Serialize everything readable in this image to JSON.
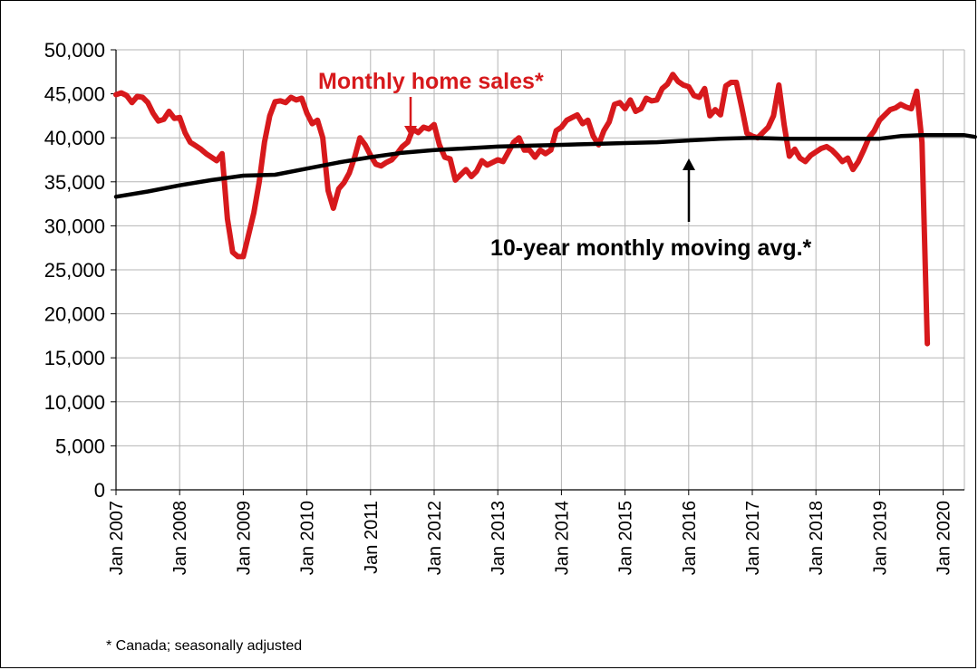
{
  "chart_data": {
    "type": "line",
    "title": "",
    "xlabel": "",
    "ylabel": "",
    "ylim": [
      0,
      50000
    ],
    "y_ticks": [
      "0",
      "5,000",
      "10,000",
      "15,000",
      "20,000",
      "25,000",
      "30,000",
      "35,000",
      "40,000",
      "45,000",
      "50,000"
    ],
    "y_tick_values": [
      0,
      5000,
      10000,
      15000,
      20000,
      25000,
      30000,
      35000,
      40000,
      45000,
      50000
    ],
    "x_ticks": [
      "Jan 2007",
      "Jan 2008",
      "Jan 2009",
      "Jan 2010",
      "Jan 2011",
      "Jan 2012",
      "Jan 2013",
      "Jan 2014",
      "Jan 2015",
      "Jan 2016",
      "Jan 2017",
      "Jan 2018",
      "Jan 2019",
      "Jan 2020"
    ],
    "x_tick_months": [
      0,
      12,
      24,
      36,
      48,
      60,
      72,
      84,
      96,
      108,
      120,
      132,
      144,
      156
    ],
    "x_max_month": 160,
    "grid": true,
    "series": [
      {
        "name": "Monthly home sales*",
        "color": "#d7191c",
        "points": [
          [
            0,
            44900
          ],
          [
            1,
            45100
          ],
          [
            2,
            44800
          ],
          [
            3,
            44000
          ],
          [
            4,
            44700
          ],
          [
            5,
            44600
          ],
          [
            6,
            44000
          ],
          [
            7,
            42800
          ],
          [
            8,
            41900
          ],
          [
            9,
            42100
          ],
          [
            10,
            43000
          ],
          [
            11,
            42200
          ],
          [
            12,
            42300
          ],
          [
            13,
            40600
          ],
          [
            14,
            39500
          ],
          [
            15,
            39100
          ],
          [
            16,
            38700
          ],
          [
            17,
            38200
          ],
          [
            18,
            37800
          ],
          [
            19,
            37400
          ],
          [
            20,
            38200
          ],
          [
            21,
            30800
          ],
          [
            22,
            27000
          ],
          [
            23,
            26500
          ],
          [
            24,
            26500
          ],
          [
            25,
            29000
          ],
          [
            26,
            31500
          ],
          [
            27,
            35000
          ],
          [
            28,
            39500
          ],
          [
            29,
            42500
          ],
          [
            30,
            44100
          ],
          [
            31,
            44200
          ],
          [
            32,
            44000
          ],
          [
            33,
            44600
          ],
          [
            34,
            44300
          ],
          [
            35,
            44500
          ],
          [
            36,
            42800
          ],
          [
            37,
            41600
          ],
          [
            38,
            42000
          ],
          [
            39,
            40000
          ],
          [
            40,
            34000
          ],
          [
            41,
            32000
          ],
          [
            42,
            34200
          ],
          [
            43,
            34900
          ],
          [
            44,
            36000
          ],
          [
            45,
            37800
          ],
          [
            46,
            40000
          ],
          [
            47,
            39200
          ],
          [
            48,
            38000
          ],
          [
            49,
            37000
          ],
          [
            50,
            36800
          ],
          [
            51,
            37200
          ],
          [
            52,
            37500
          ],
          [
            53,
            38200
          ],
          [
            54,
            39000
          ],
          [
            55,
            39500
          ],
          [
            56,
            41000
          ],
          [
            57,
            40600
          ],
          [
            58,
            41200
          ],
          [
            59,
            41000
          ],
          [
            60,
            41500
          ],
          [
            61,
            39200
          ],
          [
            62,
            37800
          ],
          [
            63,
            37600
          ],
          [
            64,
            35200
          ],
          [
            65,
            35800
          ],
          [
            66,
            36400
          ],
          [
            67,
            35600
          ],
          [
            68,
            36200
          ],
          [
            69,
            37400
          ],
          [
            70,
            36900
          ],
          [
            71,
            37200
          ],
          [
            72,
            37500
          ],
          [
            73,
            37300
          ],
          [
            74,
            38400
          ],
          [
            75,
            39500
          ],
          [
            76,
            40000
          ],
          [
            77,
            38600
          ],
          [
            78,
            38600
          ],
          [
            79,
            37800
          ],
          [
            80,
            38600
          ],
          [
            81,
            38200
          ],
          [
            82,
            38600
          ],
          [
            83,
            40800
          ],
          [
            84,
            41200
          ],
          [
            85,
            42000
          ],
          [
            86,
            42300
          ],
          [
            87,
            42600
          ],
          [
            88,
            41600
          ],
          [
            89,
            42000
          ],
          [
            90,
            40200
          ],
          [
            91,
            39200
          ],
          [
            92,
            40800
          ],
          [
            93,
            41800
          ],
          [
            94,
            43800
          ],
          [
            95,
            44000
          ],
          [
            96,
            43300
          ],
          [
            97,
            44300
          ],
          [
            98,
            43000
          ],
          [
            99,
            43300
          ],
          [
            100,
            44500
          ],
          [
            101,
            44200
          ],
          [
            102,
            44300
          ],
          [
            103,
            45600
          ],
          [
            104,
            46100
          ],
          [
            105,
            47200
          ],
          [
            106,
            46400
          ],
          [
            107,
            46000
          ],
          [
            108,
            45800
          ],
          [
            109,
            44800
          ],
          [
            110,
            44600
          ],
          [
            111,
            45600
          ],
          [
            112,
            42500
          ],
          [
            113,
            43200
          ],
          [
            114,
            42600
          ],
          [
            115,
            45900
          ],
          [
            116,
            46300
          ],
          [
            117,
            46300
          ],
          [
            118,
            43500
          ],
          [
            119,
            40500
          ],
          [
            120,
            40200
          ],
          [
            121,
            40000
          ],
          [
            122,
            40600
          ],
          [
            123,
            41200
          ],
          [
            124,
            42500
          ],
          [
            125,
            46000
          ],
          [
            126,
            41500
          ],
          [
            127,
            37900
          ],
          [
            128,
            38700
          ],
          [
            129,
            37700
          ],
          [
            130,
            37300
          ],
          [
            131,
            38000
          ],
          [
            132,
            38400
          ],
          [
            133,
            38800
          ],
          [
            134,
            39000
          ],
          [
            135,
            38600
          ],
          [
            136,
            38000
          ],
          [
            137,
            37300
          ],
          [
            138,
            37700
          ],
          [
            139,
            36400
          ],
          [
            140,
            37300
          ],
          [
            141,
            38600
          ],
          [
            142,
            40000
          ],
          [
            143,
            40800
          ],
          [
            144,
            42000
          ],
          [
            145,
            42600
          ],
          [
            146,
            43200
          ],
          [
            147,
            43400
          ],
          [
            148,
            43800
          ],
          [
            149,
            43500
          ],
          [
            150,
            43300
          ],
          [
            151,
            45300
          ],
          [
            152,
            39500
          ],
          [
            153,
            16600
          ]
        ]
      },
      {
        "name": "10-year monthly moving avg.*",
        "color": "#000000",
        "points": [
          [
            0,
            33300
          ],
          [
            6,
            33900
          ],
          [
            12,
            34600
          ],
          [
            18,
            35200
          ],
          [
            24,
            35700
          ],
          [
            30,
            35800
          ],
          [
            36,
            36500
          ],
          [
            42,
            37200
          ],
          [
            48,
            37800
          ],
          [
            54,
            38300
          ],
          [
            60,
            38600
          ],
          [
            66,
            38800
          ],
          [
            72,
            39000
          ],
          [
            78,
            39100
          ],
          [
            84,
            39200
          ],
          [
            90,
            39300
          ],
          [
            96,
            39400
          ],
          [
            102,
            39500
          ],
          [
            108,
            39700
          ],
          [
            114,
            39900
          ],
          [
            120,
            40000
          ],
          [
            126,
            39900
          ],
          [
            132,
            39900
          ],
          [
            138,
            39900
          ],
          [
            144,
            39900
          ],
          [
            148,
            40200
          ],
          [
            152,
            40300
          ],
          [
            156,
            40300
          ],
          [
            160,
            40300
          ],
          [
            162,
            40100
          ]
        ]
      }
    ],
    "annotations": {
      "sales_label": "Monthly home sales*",
      "avg_label": "10-year monthly moving avg.*"
    },
    "footnote": "* Canada; seasonally adjusted"
  }
}
